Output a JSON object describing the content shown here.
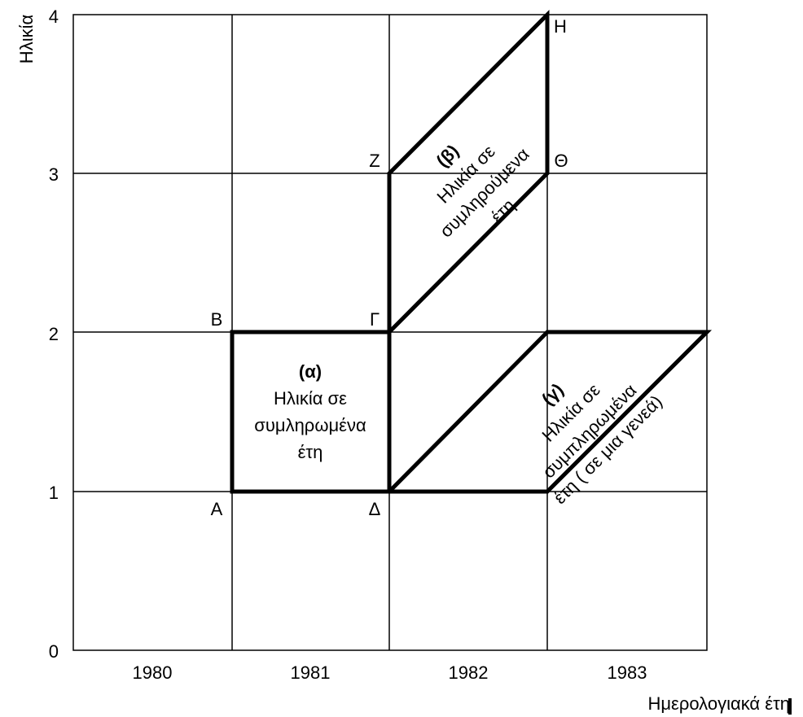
{
  "axes": {
    "y_label": "Ηλικία",
    "x_label": "Ημερολογιακά έτη",
    "y_ticks": [
      "0",
      "1",
      "2",
      "3",
      "4"
    ],
    "x_categories": [
      "1980",
      "1981",
      "1982",
      "1983"
    ]
  },
  "points": {
    "A": "Α",
    "B": "Β",
    "G": "Γ",
    "D": "Δ",
    "Z": "Ζ",
    "H": "Η",
    "TH": "Θ"
  },
  "regions": {
    "a": {
      "tag": "(α)",
      "lines": [
        "Ηλικία σε",
        "συμληρωμένα",
        "έτη"
      ]
    },
    "b": {
      "tag": "(β)",
      "lines": [
        "Ηλικία σε",
        "συμληρούμενα",
        "έτη"
      ]
    },
    "c": {
      "tag": "(γ)",
      "lines": [
        "Ηλικία σε",
        "συμπληρωμένα",
        "έτη ( σε μια γενεά)"
      ]
    }
  }
}
